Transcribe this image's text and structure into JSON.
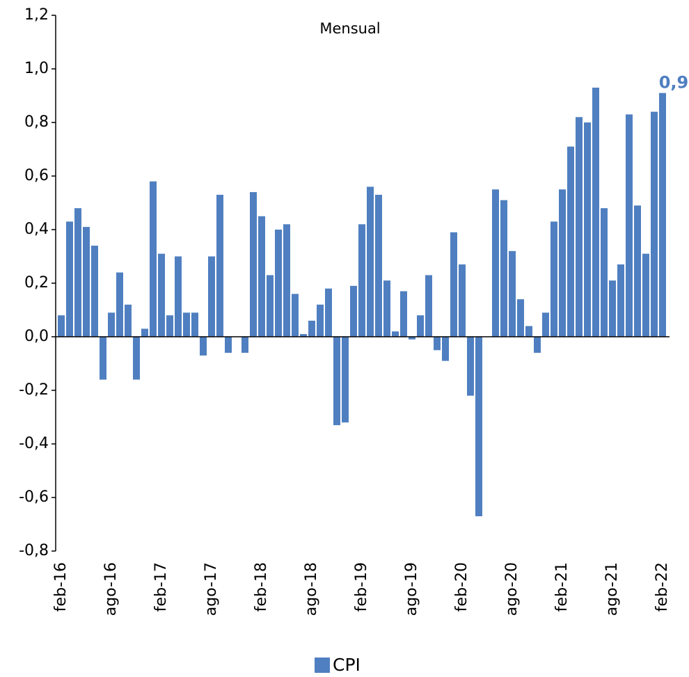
{
  "chart_data": {
    "type": "bar",
    "title": "Mensual",
    "categories": [
      "feb-16",
      null,
      null,
      null,
      null,
      null,
      "ago-16",
      null,
      null,
      null,
      null,
      null,
      "feb-17",
      null,
      null,
      null,
      null,
      null,
      "ago-17",
      null,
      null,
      null,
      null,
      null,
      "feb-18",
      null,
      null,
      null,
      null,
      null,
      "ago-18",
      null,
      null,
      null,
      null,
      null,
      "feb-19",
      null,
      null,
      null,
      null,
      null,
      "ago-19",
      null,
      null,
      null,
      null,
      null,
      "feb-20",
      null,
      null,
      null,
      null,
      null,
      "ago-20",
      null,
      null,
      null,
      null,
      null,
      "feb-21",
      null,
      null,
      null,
      null,
      null,
      "ago-21",
      null,
      null,
      null,
      null,
      null,
      "feb-22"
    ],
    "series": [
      {
        "name": "CPI",
        "color": "#4f7fc0",
        "values": [
          0.08,
          0.43,
          0.48,
          0.41,
          0.34,
          -0.16,
          0.09,
          0.24,
          0.12,
          -0.16,
          0.03,
          0.58,
          0.31,
          0.08,
          0.3,
          0.09,
          0.09,
          -0.07,
          0.3,
          0.53,
          -0.06,
          0.0,
          -0.06,
          0.54,
          0.45,
          0.23,
          0.4,
          0.42,
          0.16,
          0.01,
          0.06,
          0.12,
          0.18,
          -0.33,
          -0.32,
          0.19,
          0.42,
          0.56,
          0.53,
          0.21,
          0.02,
          0.17,
          -0.01,
          0.08,
          0.23,
          -0.05,
          -0.09,
          0.39,
          0.27,
          -0.22,
          -0.67,
          0.0,
          0.55,
          0.51,
          0.32,
          0.14,
          0.04,
          -0.06,
          0.09,
          0.43,
          0.55,
          0.71,
          0.82,
          0.8,
          0.93,
          0.48,
          0.21,
          0.27,
          0.83,
          0.49,
          0.31,
          0.84,
          0.91
        ],
        "value_labels": [
          null,
          null,
          null,
          null,
          null,
          null,
          null,
          null,
          null,
          null,
          null,
          null,
          null,
          null,
          null,
          null,
          null,
          null,
          null,
          null,
          null,
          null,
          null,
          null,
          null,
          null,
          null,
          null,
          null,
          null,
          null,
          null,
          null,
          null,
          null,
          null,
          null,
          null,
          null,
          null,
          null,
          null,
          null,
          null,
          null,
          null,
          null,
          null,
          null,
          null,
          null,
          null,
          null,
          null,
          null,
          null,
          null,
          null,
          null,
          null,
          null,
          null,
          null,
          null,
          null,
          null,
          null,
          null,
          null,
          null,
          null,
          null,
          "0,9"
        ]
      }
    ],
    "ylim": [
      -0.8,
      1.2
    ],
    "yticks": [
      {
        "value": -0.8,
        "label": "-0,8"
      },
      {
        "value": -0.6,
        "label": "-0,6"
      },
      {
        "value": -0.4,
        "label": "-0,4"
      },
      {
        "value": -0.2,
        "label": "-0,2"
      },
      {
        "value": 0,
        "label": "0,0"
      },
      {
        "value": 0.2,
        "label": "0,2"
      },
      {
        "value": 0.4,
        "label": "0,4"
      },
      {
        "value": 0.6,
        "label": "0,6"
      },
      {
        "value": 0.8,
        "label": "0,8"
      },
      {
        "value": 1.0,
        "label": "1,0"
      },
      {
        "value": 1.2,
        "label": "1,2"
      }
    ],
    "grid": false,
    "legend": "bottom"
  }
}
